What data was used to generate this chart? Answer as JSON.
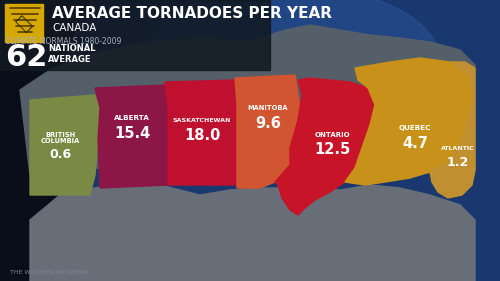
{
  "title": "AVERAGE TORNADOES PER YEAR",
  "subtitle": "CANADA",
  "climate_note": "CLIMATE NORMALS 1980-2009",
  "national_average": "62",
  "national_label": "NATIONAL\nAVERAGE",
  "credit": "THE WEATHER NETWORK",
  "title_color": "#ffffff",
  "bg_dark": "#0a0e1a",
  "globe_blue": "#1a3a6a",
  "globe_bright": "#2255aa",
  "atmosphere_color": "#7755aa",
  "map_grey": "#4a5060",
  "map_dark": "#2a3040",
  "canada_north_color": "#5a6570",
  "us_color": "#686e78",
  "bc_color": "#7a8a45",
  "ab_color": "#8c1645",
  "sk_color": "#c01030",
  "mb_color": "#d05530",
  "on_color": "#c81428",
  "qc_color": "#c8921a",
  "atl_color": "#c09030",
  "header_dark": "#111922",
  "icon_yellow": "#d4a800",
  "provinces": [
    {
      "name": "BRITISH\nCOLUMBIA",
      "value": "0.6",
      "nx": 0.068,
      "ny": 0.42
    },
    {
      "name": "ALBERTA",
      "value": "15.4",
      "nx": 0.215,
      "ny": 0.6
    },
    {
      "name": "SASKATCHEWAN",
      "value": "18.0",
      "nx": 0.33,
      "ny": 0.54
    },
    {
      "name": "MANITOBA",
      "value": "9.6",
      "nx": 0.43,
      "ny": 0.68
    },
    {
      "name": "ONTARIO",
      "value": "12.5",
      "nx": 0.54,
      "ny": 0.55
    },
    {
      "name": "QUEBEC",
      "value": "4.7",
      "nx": 0.72,
      "ny": 0.62
    },
    {
      "name": "ATLANTIC",
      "value": "1.2",
      "nx": 0.9,
      "ny": 0.58
    }
  ]
}
